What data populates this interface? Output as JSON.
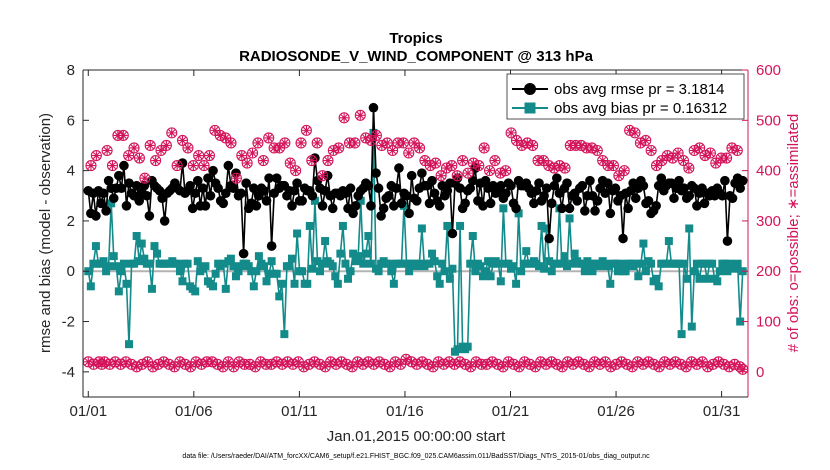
{
  "chart_data": {
    "type": "line",
    "title": "Tropics",
    "subtitle": "RADIOSONDE_V_WIND_COMPONENT @ 313 hPa",
    "xlabel": "Jan.01,2015 00:00:00 start",
    "ylabel_left": "rmse and bias (model - observation)",
    "ylabel_right": "# of obs: o=possible; ∗=assimilated",
    "footer": "data file: /Users/raeder/DAI/ATM_forcXX/CAM6_setup/f.e21.FHIST_BGC.f09_025.CAM6assim.011/BadSST/Diags_NTrS_2015-01/obs_diag_output.nc",
    "xlim": [
      0.75,
      32.25
    ],
    "ylim_left": [
      -5,
      8
    ],
    "ylim_right": [
      -50,
      600
    ],
    "x_ticks": [
      1,
      6,
      11,
      16,
      21,
      26,
      31
    ],
    "x_tick_labels": [
      "01/01",
      "01/06",
      "01/11",
      "01/16",
      "01/21",
      "01/26",
      "01/31"
    ],
    "y_ticks_left": [
      -4,
      -2,
      0,
      2,
      4,
      6,
      8
    ],
    "y_ticks_right": [
      0,
      100,
      200,
      300,
      400,
      500,
      600
    ],
    "grid": false,
    "legend": {
      "position": "top-right",
      "entries": [
        "obs avg rmse pr = 3.1814",
        "obs avg bias pr = 0.16312"
      ]
    },
    "colors": {
      "rmse": "#000000",
      "bias": "#148b8b",
      "count": "#d4145a",
      "zero_line": "#b3b3b3"
    },
    "series": [
      {
        "name": "obs avg rmse pr = 3.1814",
        "axis": "left",
        "marker": "circle",
        "values": [
          3.2,
          2.3,
          3.1,
          2.2,
          3.2,
          2.7,
          3.1,
          2.4,
          3.6,
          3.3,
          2.9,
          3.3,
          3.8,
          3.3,
          4.2,
          2.6,
          3.5,
          3.1,
          3.0,
          3.4,
          2.8,
          3.1,
          3.4,
          3.0,
          2.2,
          3.6,
          3.4,
          3.3,
          3.2,
          2.9,
          2.0,
          3.1,
          3.2,
          3.3,
          3.5,
          3.3,
          3.2,
          4.3,
          3.1,
          3.2,
          3.4,
          2.5,
          3.1,
          3.6,
          2.6,
          3.3,
          2.6,
          3.7,
          3.0,
          4.0,
          3.5,
          3.3,
          2.8,
          2.7,
          3.1,
          4.2,
          3.4,
          3.3,
          3.9,
          3.0,
          3.1,
          0.7,
          3.5,
          2.5,
          2.7,
          3.3,
          2.6,
          3.0,
          3.3,
          3.2,
          2.8,
          3.7,
          1.0,
          3.1,
          3.7,
          3.3,
          3.4,
          3.4,
          3.0,
          3.2,
          2.6,
          3.2,
          3.5,
          2.8,
          2.8,
          3.3,
          3.2,
          3.2,
          3.0,
          4.5,
          3.6,
          3.3,
          2.6,
          3.2,
          3.8,
          3.0,
          2.5,
          3.1,
          3.1,
          3.0,
          3.2,
          3.1,
          2.5,
          3.3,
          2.3,
          2.6,
          3.0,
          3.2,
          3.3,
          3.5,
          3.4,
          2.6,
          6.5,
          3.9,
          3.3,
          2.2,
          2.5,
          2.9,
          3.0,
          3.4,
          2.6,
          3.3,
          4.1,
          2.7,
          3.1,
          3.0,
          2.3,
          3.8,
          2.9,
          2.8,
          3.3,
          3.9,
          3.4,
          3.4,
          2.7,
          3.6,
          3.1,
          2.8,
          2.6,
          3.4,
          3.0,
          3.2,
          3.5,
          1.5,
          3.5,
          3.7,
          3.3,
          2.5,
          2.7,
          3.2,
          3.3,
          3.6,
          4.1,
          2.8,
          3.5,
          2.6,
          3.6,
          3.3,
          2.7,
          3.4,
          3.1,
          3.2,
          3.4,
          2.9,
          3.1,
          3.5,
          3.4,
          2.7,
          2.5,
          3.6,
          3.4,
          3.4,
          3.5,
          3.3,
          3.1,
          2.7,
          3.2,
          3.5,
          2.8,
          3.0,
          3.3,
          1.3,
          2.7,
          3.4,
          3.7,
          3.1,
          2.5,
          3.3,
          3.5,
          2.5,
          3.0,
          3.1,
          2.8,
          3.3,
          3.4,
          2.4,
          3.0,
          3.6,
          3.0,
          2.4,
          2.8,
          3.3,
          3.6,
          3.1,
          3.5,
          2.3,
          3.2,
          3.3,
          2.8,
          3.0,
          1.3,
          3.1,
          2.5,
          3.2,
          3.5,
          2.9,
          3.3,
          3.6,
          3.4,
          2.7,
          2.8,
          2.3,
          2.4,
          2.6,
          3.4,
          3.7,
          3.2,
          3.4,
          3.5,
          3.5,
          2.9,
          3.3,
          3.6,
          3.2,
          3.3,
          2.9,
          3.0,
          3.4,
          3.3,
          2.6,
          3.1,
          3.3,
          2.7,
          3.1,
          3.0,
          3.2,
          3.0,
          3.3,
          3.1,
          3.0,
          3.6,
          1.2,
          3.0,
          2.9,
          3.5,
          3.7,
          3.3,
          3.6
        ]
      },
      {
        "name": "obs avg bias pr = 0.16312",
        "axis": "left",
        "marker": "square",
        "values": [
          0.0,
          -0.6,
          0.3,
          1.0,
          0.3,
          0.3,
          0.4,
          0.0,
          0.2,
          2.7,
          0.6,
          0.2,
          -0.8,
          0.0,
          0.3,
          -0.5,
          -2.9,
          0.3,
          0.3,
          1.4,
          0.4,
          1.1,
          0.5,
          0.3,
          0.3,
          -0.7,
          1.0,
          0.7,
          0.3,
          0.3,
          0.3,
          0.3,
          0.3,
          0.4,
          0.3,
          0.3,
          0.0,
          -0.4,
          0.3,
          0.3,
          -0.6,
          -0.7,
          -0.8,
          0.4,
          0.0,
          0.1,
          0.2,
          -0.4,
          -0.5,
          -0.6,
          -0.1,
          0.3,
          0.2,
          0.3,
          -0.7,
          0.4,
          0.5,
          0.2,
          -0.2,
          0.0,
          0.2,
          0.3,
          0.3,
          0.2,
          0.0,
          -0.6,
          0.0,
          0.6,
          0.3,
          0.2,
          -0.4,
          -0.1,
          0.4,
          -0.1,
          -0.1,
          -1.0,
          -0.5,
          -2.5,
          0.2,
          0.2,
          0.5,
          -0.5,
          1.5,
          0.0,
          0.0,
          -0.5,
          -0.5,
          1.8,
          0.1,
          2.8,
          0.4,
          0.0,
          0.3,
          1.2,
          0.4,
          0.3,
          0.2,
          -0.2,
          -0.5,
          0.7,
          1.8,
          0.3,
          -0.3,
          0.0,
          0.7,
          0.4,
          0.6,
          2.8,
          0.3,
          0.7,
          1.4,
          0.3,
          5.5,
          0.1,
          0.0,
          0.3,
          0.4,
          0.3,
          0.3,
          0.0,
          -0.5,
          0.3,
          0.3,
          0.3,
          2.6,
          0.3,
          0.0,
          0.3,
          0.3,
          0.2,
          0.3,
          1.7,
          0.2,
          0.3,
          0.3,
          0.7,
          0.4,
          -0.2,
          -0.5,
          0.3,
          0.0,
          1.8,
          -0.3,
          0.1,
          -3.2,
          -3.1,
          1.8,
          -3.0,
          -3.1,
          -3.0,
          0.3,
          1.4,
          0.0,
          0.3,
          0.2,
          -0.2,
          0.0,
          0.4,
          -0.2,
          0.3,
          0.4,
          0.3,
          -0.4,
          2.5,
          0.3,
          0.3,
          0.1,
          0.2,
          -0.5,
          2.3,
          0.0,
          0.3,
          0.8,
          0.3,
          0.3,
          0.4,
          0.3,
          0.2,
          1.8,
          0.1,
          1.7,
          0.4,
          0.0,
          0.3,
          0.3,
          2.5,
          0.3,
          0.6,
          0.2,
          2.1,
          0.3,
          0.7,
          0.4,
          0.3,
          0.3,
          0.0,
          0.4,
          0.3,
          0.0,
          0.3,
          0.3,
          0.2,
          0.4,
          0.3,
          0.2,
          -0.5,
          0.3,
          0.3,
          0.0,
          0.3,
          0.0,
          0.0,
          0.3,
          0.3,
          0.2,
          0.3,
          -0.2,
          0.3,
          1.1,
          0.0,
          0.4,
          0.3,
          -0.4,
          -0.3,
          -0.6,
          0.3,
          0.3,
          0.3,
          1.2,
          0.3,
          0.3,
          0.3,
          0.3,
          -2.5,
          0.3,
          -0.3,
          1.7,
          -2.2,
          0.0,
          0.3,
          -0.3,
          0.3,
          0.3,
          -0.3,
          0.3,
          0.3,
          -0.3,
          -0.4,
          0.0,
          0.3,
          0.3,
          0.0,
          0.3,
          0.2,
          0.1,
          0.3,
          -2.0,
          0.0
        ]
      },
      {
        "name": "possible",
        "axis": "right",
        "marker": "circle",
        "values": [
          20,
          410,
          15,
          430,
          20,
          15,
          20,
          440,
          15,
          410,
          20,
          470,
          15,
          470,
          20,
          430,
          15,
          445,
          10,
          425,
          15,
          385,
          20,
          450,
          10,
          420,
          15,
          440,
          20,
          450,
          15,
          475,
          10,
          410,
          20,
          460,
          15,
          445,
          10,
          410,
          20,
          430,
          15,
          410,
          20,
          430,
          20,
          480,
          15,
          470,
          10,
          465,
          20,
          455,
          10,
          385,
          20,
          430,
          15,
          415,
          15,
          435,
          10,
          455,
          20,
          420,
          15,
          465,
          15,
          445,
          20,
          445,
          15,
          455,
          20,
          415,
          15,
          400,
          20,
          455,
          10,
          480,
          15,
          420,
          20,
          455,
          15,
          390,
          10,
          420,
          20,
          440,
          15,
          445,
          20,
          505,
          15,
          455,
          10,
          455,
          20,
          510,
          15,
          465,
          20,
          460,
          15,
          470,
          20,
          450,
          15,
          455,
          10,
          440,
          20,
          455,
          15,
          455,
          25,
          435,
          20,
          455,
          15,
          445,
          20,
          420,
          15,
          410,
          10,
          415,
          20,
          390,
          15,
          405,
          20,
          410,
          15,
          390,
          20,
          420,
          15,
          395,
          10,
          415,
          20,
          410,
          15,
          445,
          15,
          400,
          20,
          420,
          15,
          395,
          10,
          400,
          20,
          475,
          15,
          460,
          10,
          450,
          20,
          455,
          15,
          450,
          10,
          420,
          20,
          420,
          15,
          410,
          20,
          405,
          15,
          410,
          10,
          405,
          20,
          450,
          15,
          450,
          20,
          450,
          15,
          445,
          10,
          445,
          20,
          440,
          15,
          420,
          20,
          410,
          10,
          410,
          15,
          390,
          20,
          400,
          15,
          480,
          10,
          475,
          20,
          455,
          15,
          460,
          20,
          440,
          15,
          410,
          10,
          420,
          20,
          430,
          15,
          425,
          20,
          435,
          15,
          420,
          10,
          405,
          20,
          440,
          15,
          445,
          20,
          430,
          10,
          435,
          15,
          415,
          20,
          425,
          15,
          425,
          10,
          445,
          15,
          440,
          10,
          5
        ]
      },
      {
        "name": "assimilated",
        "axis": "right",
        "marker": "asterisk",
        "values": [
          20,
          410,
          15,
          430,
          20,
          15,
          20,
          440,
          15,
          410,
          20,
          470,
          15,
          470,
          20,
          430,
          15,
          445,
          10,
          425,
          15,
          385,
          20,
          450,
          10,
          420,
          15,
          440,
          20,
          450,
          15,
          475,
          10,
          410,
          20,
          460,
          15,
          445,
          10,
          410,
          20,
          430,
          15,
          410,
          20,
          430,
          20,
          480,
          15,
          470,
          10,
          465,
          20,
          455,
          10,
          385,
          20,
          430,
          15,
          415,
          15,
          435,
          10,
          455,
          20,
          420,
          15,
          465,
          15,
          445,
          20,
          445,
          15,
          455,
          20,
          415,
          15,
          400,
          20,
          455,
          10,
          480,
          15,
          420,
          20,
          455,
          15,
          390,
          10,
          420,
          20,
          440,
          15,
          445,
          20,
          505,
          15,
          455,
          10,
          455,
          20,
          510,
          15,
          465,
          20,
          460,
          15,
          470,
          20,
          450,
          15,
          455,
          10,
          440,
          20,
          455,
          15,
          455,
          25,
          435,
          20,
          455,
          15,
          445,
          20,
          420,
          15,
          410,
          10,
          415,
          20,
          390,
          15,
          405,
          20,
          410,
          15,
          390,
          20,
          420,
          15,
          395,
          10,
          415,
          20,
          410,
          15,
          445,
          15,
          400,
          20,
          420,
          15,
          395,
          10,
          400,
          20,
          475,
          15,
          460,
          10,
          450,
          20,
          455,
          15,
          450,
          10,
          420,
          20,
          420,
          15,
          410,
          20,
          405,
          15,
          410,
          10,
          405,
          20,
          450,
          15,
          450,
          20,
          450,
          15,
          445,
          10,
          445,
          20,
          440,
          15,
          420,
          20,
          410,
          10,
          410,
          15,
          390,
          20,
          400,
          15,
          480,
          10,
          475,
          20,
          455,
          15,
          460,
          20,
          440,
          15,
          410,
          10,
          420,
          20,
          430,
          15,
          425,
          20,
          435,
          15,
          420,
          10,
          405,
          20,
          440,
          15,
          445,
          20,
          430,
          10,
          435,
          15,
          415,
          20,
          425,
          15,
          425,
          10,
          445,
          15,
          440,
          10,
          5
        ]
      }
    ]
  }
}
